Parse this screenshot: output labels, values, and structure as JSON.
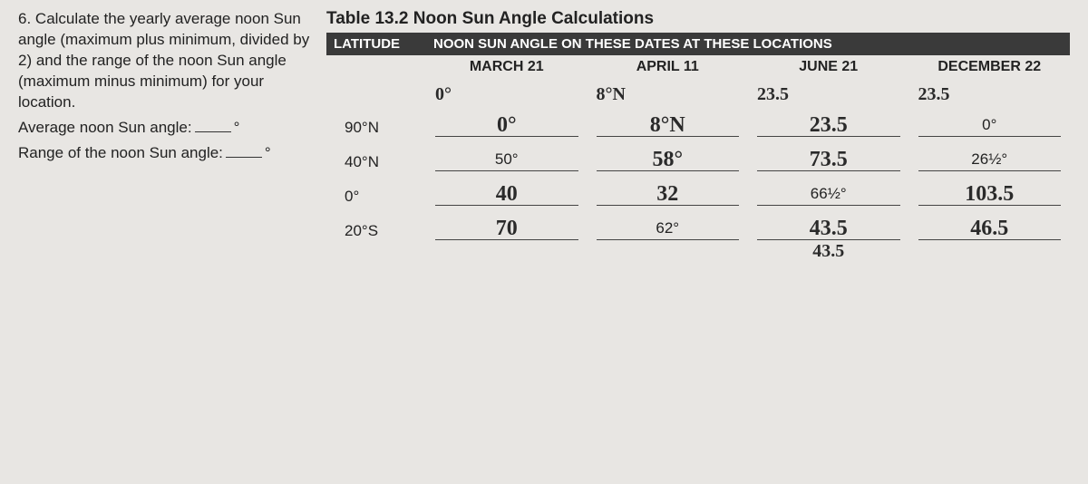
{
  "question": {
    "number": "6.",
    "text": "Calculate the yearly average noon Sun angle (maximum plus minimum, divided by 2) and the range of the noon Sun angle (maximum minus minimum) for your location.",
    "avg_label": "Average noon Sun angle:",
    "range_label": "Range of the noon Sun angle:",
    "degree": "°"
  },
  "table": {
    "title": "Table 13.2  Noon Sun Angle Calculations",
    "header_latitude": "LATITUDE",
    "header_main": "NOON SUN ANGLE ON THESE DATES AT THESE LOCATIONS",
    "dates": [
      "MARCH 21",
      "APRIL 11",
      "JUNE 21",
      "DECEMBER 22"
    ],
    "header_handwritten": [
      "0°",
      "8°N",
      "23.5",
      "23.5"
    ],
    "rows": [
      {
        "lat": "90°N",
        "cells": [
          {
            "type": "hw",
            "val": "0°"
          },
          {
            "type": "hw",
            "val": "8°N"
          },
          {
            "type": "hw",
            "val": "23.5"
          },
          {
            "type": "print",
            "val": "0°"
          }
        ]
      },
      {
        "lat": "40°N",
        "cells": [
          {
            "type": "print",
            "val": "50°"
          },
          {
            "type": "hw",
            "val": "58°"
          },
          {
            "type": "hw",
            "val": "73.5"
          },
          {
            "type": "print",
            "val": "26½°"
          }
        ]
      },
      {
        "lat": "0°",
        "cells": [
          {
            "type": "hw",
            "val": "40"
          },
          {
            "type": "hw",
            "val": "32"
          },
          {
            "type": "print",
            "val": "66½°"
          },
          {
            "type": "hw",
            "val": "103.5"
          }
        ]
      },
      {
        "lat": "20°S",
        "cells": [
          {
            "type": "hw",
            "val": "70"
          },
          {
            "type": "print",
            "val": "62°"
          },
          {
            "type": "hw",
            "val": "43.5"
          },
          {
            "type": "hw",
            "val": "46.5"
          }
        ]
      }
    ],
    "extra_handwritten": "43.5"
  },
  "colors": {
    "bg": "#e8e6e3",
    "text": "#222222",
    "header_bg": "#3a3a3a",
    "header_text": "#ffffff",
    "line": "#444444",
    "handwriting": "#2a2a2a"
  }
}
